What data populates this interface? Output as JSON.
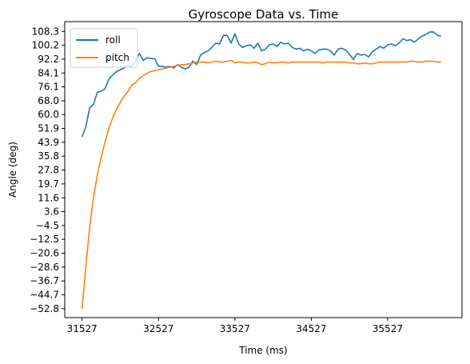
{
  "chart_data": {
    "type": "line",
    "title": "Gyroscope Data vs. Time",
    "xlabel": "Time (ms)",
    "ylabel": "Angle (deg)",
    "xlim": [
      31300,
      36500
    ],
    "ylim": [
      -58,
      114
    ],
    "x_ticks": [
      31527,
      32527,
      33527,
      34527,
      35527
    ],
    "y_ticks": [
      -52.8,
      -44.7,
      -36.7,
      -28.6,
      -20.6,
      -12.5,
      -4.5,
      3.6,
      11.6,
      19.7,
      27.8,
      35.8,
      43.9,
      51.9,
      60.0,
      68.0,
      76.1,
      84.1,
      92.2,
      100.2,
      108.3
    ],
    "y_tick_labels": [
      "−52.8",
      "−44.7",
      "−36.7",
      "−28.6",
      "−20.6",
      "−12.5",
      "−4.5",
      "3.6",
      "11.6",
      "19.7",
      "27.8",
      "35.8",
      "43.9",
      "51.9",
      "60.0",
      "68.0",
      "76.1",
      "84.1",
      "92.2",
      "100.2",
      "108.3"
    ],
    "grid": false,
    "legend_position": "top-left",
    "series": [
      {
        "name": "roll",
        "color": "#1f77b4",
        "x": [
          31527,
          31577,
          31627,
          31677,
          31727,
          31777,
          31827,
          31877,
          31927,
          31977,
          32027,
          32077,
          32127,
          32177,
          32227,
          32277,
          32327,
          32377,
          32427,
          32477,
          32527,
          32577,
          32627,
          32677,
          32727,
          32777,
          32827,
          32877,
          32927,
          32977,
          33027,
          33077,
          33127,
          33177,
          33227,
          33277,
          33327,
          33377,
          33427,
          33477,
          33527,
          33577,
          33627,
          33677,
          33727,
          33777,
          33827,
          33877,
          33927,
          33977,
          34027,
          34077,
          34127,
          34177,
          34227,
          34277,
          34327,
          34377,
          34427,
          34477,
          34527,
          34577,
          34627,
          34677,
          34727,
          34777,
          34827,
          34877,
          34927,
          34977,
          35027,
          35077,
          35127,
          35177,
          35227,
          35277,
          35327,
          35377,
          35427,
          35477,
          35527,
          35577,
          35627,
          35677,
          35727,
          35777,
          35827,
          35877,
          35927,
          35977,
          36027,
          36077,
          36127,
          36177,
          36227
        ],
        "y": [
          47.0,
          53.0,
          64.0,
          66.0,
          73.0,
          73.5,
          75.0,
          80.5,
          83.0,
          85.0,
          86.0,
          87.0,
          88.5,
          88.0,
          91.0,
          95.5,
          91.5,
          93.0,
          92.5,
          92.5,
          88.0,
          88.0,
          87.5,
          88.0,
          87.0,
          89.0,
          87.5,
          86.5,
          87.5,
          91.0,
          89.0,
          94.5,
          96.0,
          97.0,
          99.0,
          101.5,
          101.0,
          106.0,
          106.0,
          101.5,
          107.0,
          101.0,
          99.0,
          100.0,
          100.5,
          98.5,
          101.5,
          97.0,
          98.0,
          100.5,
          101.0,
          99.5,
          102.0,
          101.0,
          101.5,
          99.0,
          98.0,
          98.5,
          97.0,
          98.0,
          97.0,
          95.5,
          97.5,
          98.0,
          98.0,
          97.0,
          94.5,
          98.0,
          98.5,
          97.5,
          95.0,
          92.0,
          95.5,
          94.5,
          95.0,
          93.5,
          96.5,
          98.0,
          99.5,
          98.5,
          100.5,
          101.0,
          100.0,
          101.5,
          104.0,
          103.0,
          103.5,
          102.0,
          104.0,
          105.5,
          106.5,
          108.0,
          108.0,
          106.0,
          105.5
        ]
      },
      {
        "name": "pitch",
        "color": "#ff7f0e",
        "x": [
          31527,
          31577,
          31627,
          31677,
          31727,
          31777,
          31827,
          31877,
          31927,
          31977,
          32027,
          32077,
          32127,
          32177,
          32227,
          32277,
          32327,
          32377,
          32427,
          32477,
          32527,
          32577,
          32627,
          32677,
          32727,
          32777,
          32827,
          32877,
          32927,
          32977,
          33027,
          33077,
          33127,
          33177,
          33227,
          33277,
          33327,
          33377,
          33427,
          33477,
          33527,
          33577,
          33627,
          33677,
          33727,
          33777,
          33827,
          33877,
          33927,
          33977,
          34027,
          34077,
          34127,
          34177,
          34227,
          34277,
          34327,
          34377,
          34427,
          34477,
          34527,
          34577,
          34627,
          34677,
          34727,
          34777,
          34827,
          34877,
          34927,
          34977,
          35027,
          35077,
          35127,
          35177,
          35227,
          35277,
          35327,
          35377,
          35427,
          35477,
          35527,
          35577,
          35627,
          35677,
          35727,
          35777,
          35827,
          35877,
          35927,
          35977,
          36027,
          36077,
          36127,
          36177,
          36227
        ],
        "y": [
          -53.0,
          -28.0,
          -5.0,
          12.0,
          25.0,
          35.0,
          44.0,
          52.0,
          58.0,
          63.0,
          67.0,
          70.5,
          73.5,
          77.0,
          78.5,
          81.0,
          82.5,
          84.0,
          85.0,
          85.5,
          86.0,
          86.5,
          87.0,
          87.5,
          88.0,
          88.5,
          89.0,
          89.0,
          89.5,
          90.0,
          90.5,
          90.5,
          90.5,
          90.0,
          90.5,
          91.0,
          90.5,
          90.5,
          91.0,
          91.5,
          90.0,
          90.5,
          90.5,
          90.0,
          90.0,
          90.5,
          90.0,
          89.0,
          89.5,
          90.5,
          90.0,
          90.0,
          90.5,
          90.5,
          90.0,
          90.5,
          90.5,
          90.5,
          90.5,
          90.5,
          90.5,
          90.5,
          90.5,
          90.0,
          90.5,
          90.5,
          90.5,
          90.5,
          90.5,
          90.5,
          90.0,
          90.0,
          89.5,
          89.5,
          90.0,
          89.5,
          89.5,
          90.0,
          90.5,
          90.5,
          90.5,
          90.5,
          90.5,
          90.5,
          90.5,
          90.5,
          91.0,
          91.0,
          90.5,
          90.5,
          91.0,
          91.0,
          91.0,
          90.5,
          90.5
        ]
      }
    ]
  }
}
